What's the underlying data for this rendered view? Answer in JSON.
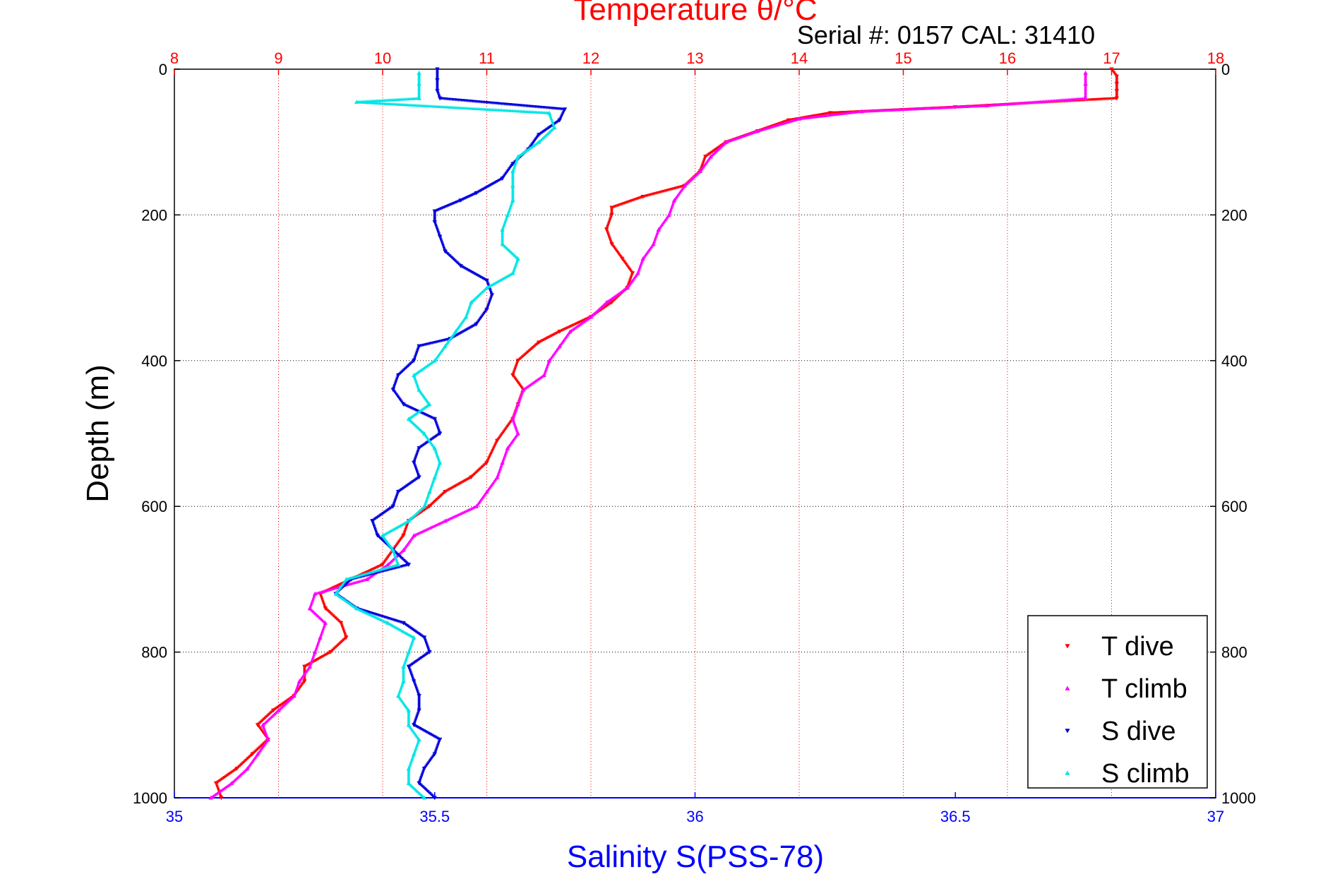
{
  "chart_data": {
    "type": "scatter",
    "title": "Temperature θ/°C",
    "subtitle": "Serial #: 0157  CAL: 31410",
    "xlabel_bottom": "Salinity S(PSS-78)",
    "xlabel_top": "Temperature θ/°C",
    "ylabel": "Depth (m)",
    "ylim": [
      1000,
      0
    ],
    "xlim_salinity": [
      35,
      37
    ],
    "xlim_temperature": [
      8,
      18
    ],
    "x_ticks_salinity": [
      "35",
      "35.5",
      "36",
      "36.5",
      "37"
    ],
    "x_ticks_temperature": [
      "8",
      "9",
      "10",
      "11",
      "12",
      "13",
      "14",
      "15",
      "16",
      "17",
      "18"
    ],
    "y_ticks": [
      "0",
      "200",
      "400",
      "600",
      "800",
      "1000"
    ],
    "grid": true,
    "legend_position": "bottom-right",
    "colors": {
      "temperature_axis": "#ff0000",
      "salinity_axis": "#0000ff",
      "t_dive": "#ff0000",
      "t_climb": "#ff00ff",
      "s_dive": "#0000dd",
      "s_climb": "#00e5e5"
    },
    "series": [
      {
        "name": "T dive",
        "marker": "triangle-down",
        "axis": "temperature",
        "points": [
          [
            17.0,
            0
          ],
          [
            17.05,
            10
          ],
          [
            17.05,
            20
          ],
          [
            17.05,
            30
          ],
          [
            17.05,
            40
          ],
          [
            15.5,
            52
          ],
          [
            14.3,
            60
          ],
          [
            13.9,
            70
          ],
          [
            13.6,
            85
          ],
          [
            13.3,
            100
          ],
          [
            13.1,
            120
          ],
          [
            13.05,
            140
          ],
          [
            12.9,
            160
          ],
          [
            12.5,
            175
          ],
          [
            12.2,
            190
          ],
          [
            12.2,
            200
          ],
          [
            12.15,
            220
          ],
          [
            12.2,
            240
          ],
          [
            12.3,
            260
          ],
          [
            12.4,
            280
          ],
          [
            12.35,
            300
          ],
          [
            12.2,
            320
          ],
          [
            12.0,
            340
          ],
          [
            11.7,
            360
          ],
          [
            11.5,
            375
          ],
          [
            11.3,
            400
          ],
          [
            11.25,
            420
          ],
          [
            11.35,
            440
          ],
          [
            11.3,
            460
          ],
          [
            11.25,
            480
          ],
          [
            11.1,
            510
          ],
          [
            11.0,
            540
          ],
          [
            10.85,
            560
          ],
          [
            10.6,
            580
          ],
          [
            10.45,
            600
          ],
          [
            10.25,
            620
          ],
          [
            10.2,
            640
          ],
          [
            10.1,
            660
          ],
          [
            10.0,
            680
          ],
          [
            9.7,
            700
          ],
          [
            9.4,
            720
          ],
          [
            9.45,
            740
          ],
          [
            9.6,
            760
          ],
          [
            9.65,
            780
          ],
          [
            9.5,
            800
          ],
          [
            9.25,
            820
          ],
          [
            9.25,
            840
          ],
          [
            9.15,
            860
          ],
          [
            8.95,
            880
          ],
          [
            8.8,
            900
          ],
          [
            8.9,
            920
          ],
          [
            8.75,
            940
          ],
          [
            8.6,
            960
          ],
          [
            8.4,
            980
          ],
          [
            8.45,
            1000
          ]
        ]
      },
      {
        "name": "T climb",
        "marker": "triangle-up",
        "axis": "temperature",
        "points": [
          [
            16.75,
            5
          ],
          [
            16.75,
            20
          ],
          [
            16.75,
            40
          ],
          [
            15.8,
            50
          ],
          [
            14.6,
            58
          ],
          [
            14.0,
            68
          ],
          [
            13.6,
            85
          ],
          [
            13.3,
            100
          ],
          [
            13.15,
            120
          ],
          [
            13.05,
            140
          ],
          [
            12.9,
            160
          ],
          [
            12.8,
            180
          ],
          [
            12.75,
            200
          ],
          [
            12.65,
            220
          ],
          [
            12.6,
            240
          ],
          [
            12.5,
            260
          ],
          [
            12.45,
            280
          ],
          [
            12.35,
            300
          ],
          [
            12.15,
            320
          ],
          [
            12.0,
            340
          ],
          [
            11.8,
            360
          ],
          [
            11.7,
            380
          ],
          [
            11.6,
            400
          ],
          [
            11.55,
            420
          ],
          [
            11.35,
            440
          ],
          [
            11.3,
            460
          ],
          [
            11.25,
            480
          ],
          [
            11.3,
            500
          ],
          [
            11.2,
            520
          ],
          [
            11.15,
            540
          ],
          [
            11.1,
            560
          ],
          [
            11.0,
            580
          ],
          [
            10.9,
            600
          ],
          [
            10.6,
            620
          ],
          [
            10.3,
            640
          ],
          [
            10.2,
            660
          ],
          [
            10.05,
            680
          ],
          [
            9.85,
            700
          ],
          [
            9.35,
            720
          ],
          [
            9.3,
            740
          ],
          [
            9.45,
            760
          ],
          [
            9.4,
            780
          ],
          [
            9.35,
            800
          ],
          [
            9.3,
            820
          ],
          [
            9.2,
            840
          ],
          [
            9.15,
            860
          ],
          [
            9.0,
            880
          ],
          [
            8.85,
            900
          ],
          [
            8.9,
            920
          ],
          [
            8.8,
            940
          ],
          [
            8.7,
            960
          ],
          [
            8.55,
            980
          ],
          [
            8.35,
            1000
          ]
        ]
      },
      {
        "name": "S dive",
        "marker": "triangle-down",
        "axis": "salinity",
        "points": [
          [
            35.505,
            0
          ],
          [
            35.505,
            15
          ],
          [
            35.505,
            30
          ],
          [
            35.51,
            40
          ],
          [
            35.75,
            55
          ],
          [
            35.74,
            70
          ],
          [
            35.7,
            90
          ],
          [
            35.68,
            110
          ],
          [
            35.65,
            130
          ],
          [
            35.63,
            150
          ],
          [
            35.58,
            170
          ],
          [
            35.55,
            180
          ],
          [
            35.5,
            195
          ],
          [
            35.5,
            210
          ],
          [
            35.51,
            230
          ],
          [
            35.52,
            250
          ],
          [
            35.55,
            270
          ],
          [
            35.6,
            290
          ],
          [
            35.61,
            310
          ],
          [
            35.6,
            330
          ],
          [
            35.58,
            350
          ],
          [
            35.53,
            370
          ],
          [
            35.47,
            380
          ],
          [
            35.46,
            400
          ],
          [
            35.43,
            420
          ],
          [
            35.42,
            440
          ],
          [
            35.44,
            460
          ],
          [
            35.5,
            480
          ],
          [
            35.51,
            500
          ],
          [
            35.47,
            520
          ],
          [
            35.46,
            540
          ],
          [
            35.47,
            560
          ],
          [
            35.43,
            580
          ],
          [
            35.42,
            600
          ],
          [
            35.38,
            620
          ],
          [
            35.39,
            640
          ],
          [
            35.42,
            660
          ],
          [
            35.45,
            680
          ],
          [
            35.34,
            700
          ],
          [
            35.31,
            720
          ],
          [
            35.35,
            740
          ],
          [
            35.44,
            760
          ],
          [
            35.48,
            780
          ],
          [
            35.49,
            800
          ],
          [
            35.45,
            820
          ],
          [
            35.46,
            840
          ],
          [
            35.47,
            860
          ],
          [
            35.47,
            880
          ],
          [
            35.46,
            900
          ],
          [
            35.51,
            920
          ],
          [
            35.5,
            940
          ],
          [
            35.48,
            960
          ],
          [
            35.47,
            980
          ],
          [
            35.5,
            1000
          ]
        ]
      },
      {
        "name": "S climb",
        "marker": "triangle-up",
        "axis": "salinity",
        "points": [
          [
            35.47,
            5
          ],
          [
            35.47,
            20
          ],
          [
            35.47,
            40
          ],
          [
            35.35,
            45
          ],
          [
            35.72,
            60
          ],
          [
            35.73,
            80
          ],
          [
            35.7,
            100
          ],
          [
            35.66,
            120
          ],
          [
            35.65,
            140
          ],
          [
            35.65,
            160
          ],
          [
            35.65,
            180
          ],
          [
            35.64,
            200
          ],
          [
            35.63,
            220
          ],
          [
            35.63,
            240
          ],
          [
            35.66,
            260
          ],
          [
            35.65,
            280
          ],
          [
            35.6,
            300
          ],
          [
            35.57,
            320
          ],
          [
            35.56,
            340
          ],
          [
            35.54,
            360
          ],
          [
            35.52,
            380
          ],
          [
            35.5,
            400
          ],
          [
            35.46,
            420
          ],
          [
            35.47,
            440
          ],
          [
            35.49,
            460
          ],
          [
            35.45,
            480
          ],
          [
            35.48,
            500
          ],
          [
            35.5,
            520
          ],
          [
            35.51,
            540
          ],
          [
            35.5,
            560
          ],
          [
            35.49,
            580
          ],
          [
            35.48,
            600
          ],
          [
            35.45,
            620
          ],
          [
            35.4,
            640
          ],
          [
            35.42,
            660
          ],
          [
            35.43,
            680
          ],
          [
            35.33,
            700
          ],
          [
            35.31,
            720
          ],
          [
            35.35,
            740
          ],
          [
            35.41,
            760
          ],
          [
            35.46,
            780
          ],
          [
            35.45,
            800
          ],
          [
            35.44,
            820
          ],
          [
            35.44,
            840
          ],
          [
            35.43,
            860
          ],
          [
            35.45,
            880
          ],
          [
            35.45,
            900
          ],
          [
            35.47,
            920
          ],
          [
            35.46,
            940
          ],
          [
            35.45,
            960
          ],
          [
            35.45,
            980
          ],
          [
            35.48,
            1000
          ]
        ]
      }
    ]
  }
}
